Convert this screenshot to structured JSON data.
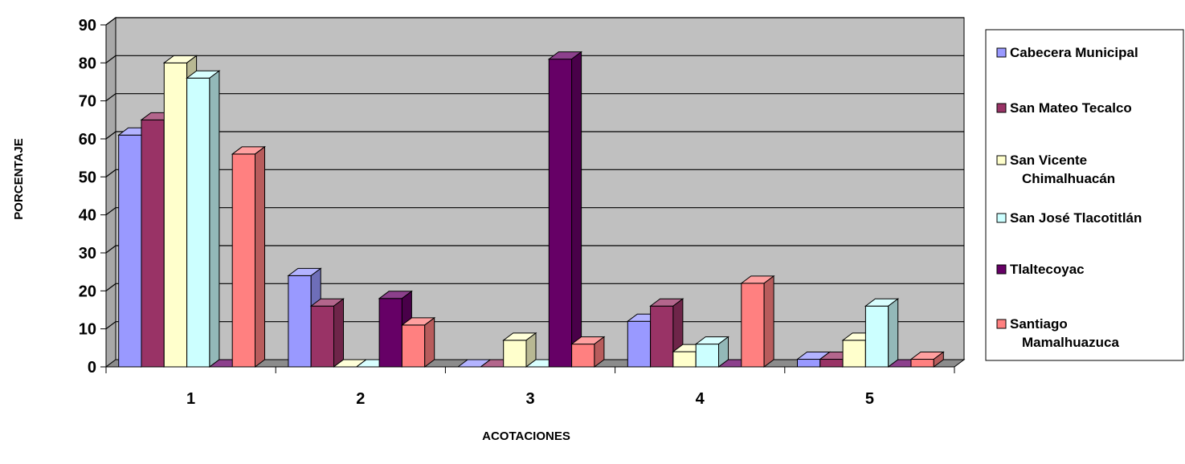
{
  "chart_data": {
    "type": "bar",
    "style": "3d-clustered-column",
    "title": "",
    "xlabel": "ACOTACIONES",
    "ylabel": "PORCENTAJE",
    "ylim": [
      0,
      90
    ],
    "yticks": [
      "0",
      "10",
      "20",
      "30",
      "40",
      "50",
      "60",
      "70",
      "80",
      "90"
    ],
    "categories": [
      "1",
      "2",
      "3",
      "4",
      "5"
    ],
    "grid": true,
    "plot_background": "#c0c0c0",
    "legend_position": "right",
    "series": [
      {
        "name": "Cabecera Municipal",
        "values": [
          61,
          24,
          0,
          12,
          2
        ],
        "color": "#9999ff"
      },
      {
        "name": "San Mateo Tecalco",
        "values": [
          65,
          16,
          0,
          16,
          2
        ],
        "color": "#993366"
      },
      {
        "name": "San Vicente Chimalhuacán",
        "values": [
          80,
          0,
          7,
          4,
          7
        ],
        "color": "#ffffcc"
      },
      {
        "name": "San José Tlacotitlán",
        "values": [
          76,
          0,
          0,
          6,
          16
        ],
        "color": "#ccffff"
      },
      {
        "name": "Tlaltecoyac",
        "values": [
          0,
          18,
          81,
          0,
          0
        ],
        "color": "#660066"
      },
      {
        "name": "Santiago Mamalhuazuca",
        "values": [
          56,
          11,
          6,
          22,
          2
        ],
        "color": "#ff8080"
      }
    ],
    "legend_lines": [
      [
        "Cabecera Municipal"
      ],
      [
        "San Mateo Tecalco"
      ],
      [
        "San Vicente",
        "Chimalhuacán"
      ],
      [
        "San José Tlacotitlán"
      ],
      [
        "Tlaltecoyac"
      ],
      [
        "Santiago",
        "Mamalhuazuca"
      ]
    ]
  }
}
